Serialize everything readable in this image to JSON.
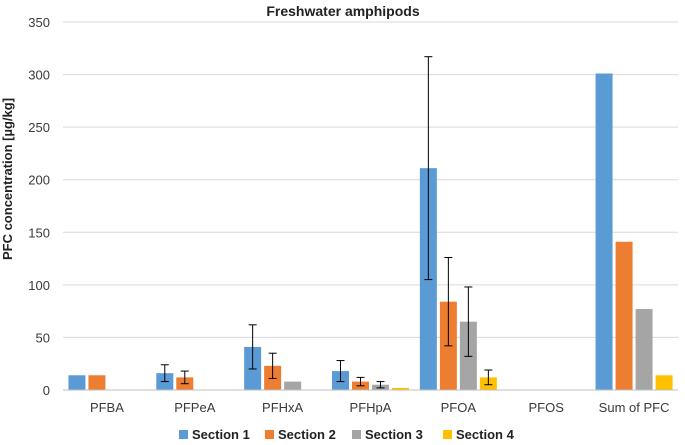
{
  "chart_data": {
    "type": "bar",
    "title": "Freshwater amphipods",
    "xlabel": "",
    "ylabel": "PFC concentration [µg/kg]",
    "ylim": [
      0,
      350
    ],
    "yticks": [
      "0",
      "50",
      "100",
      "150",
      "200",
      "250",
      "300",
      "350"
    ],
    "grid": true,
    "legend_position": "bottom",
    "categories": [
      "PFBA",
      "PFPeA",
      "PFHxA",
      "PFHpA",
      "PFOA",
      "PFOS",
      "Sum of PFC"
    ],
    "series": [
      {
        "name": "Section 1",
        "color": "#5B9BD5",
        "values": [
          14,
          16,
          41,
          18,
          211,
          0,
          301
        ],
        "errors": [
          null,
          8,
          21,
          10,
          106,
          null,
          null
        ]
      },
      {
        "name": "Section 2",
        "color": "#ED7D31",
        "values": [
          14,
          12,
          23,
          8,
          84,
          0,
          141
        ],
        "errors": [
          null,
          6,
          12,
          4,
          42,
          null,
          null
        ]
      },
      {
        "name": "Section 3",
        "color": "#A5A5A5",
        "values": [
          0,
          0,
          8,
          5,
          65,
          0,
          77
        ],
        "errors": [
          null,
          null,
          null,
          3,
          33,
          null,
          null
        ]
      },
      {
        "name": "Section 4",
        "color": "#FFC000",
        "values": [
          0,
          0,
          0,
          2,
          12,
          0,
          14
        ],
        "errors": [
          null,
          null,
          null,
          null,
          7,
          null,
          null
        ]
      }
    ]
  }
}
